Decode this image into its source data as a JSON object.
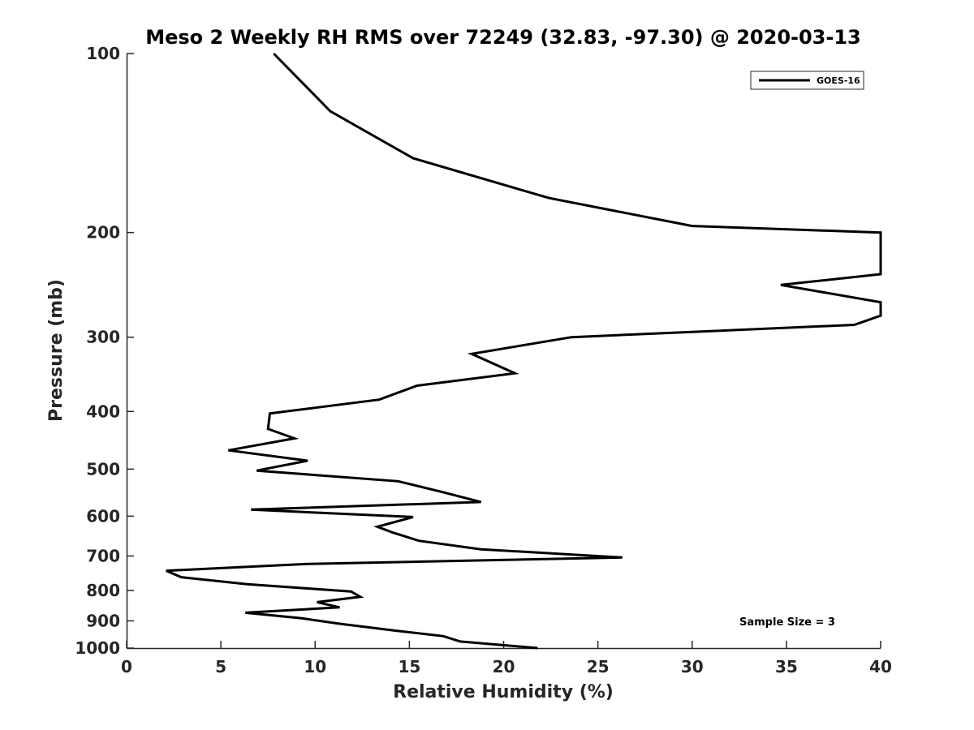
{
  "chart_data": {
    "type": "line",
    "title": "Meso 2 Weekly RH RMS over 72249 (32.83, -97.30) @ 2020-03-13",
    "xlabel": "Relative Humidity (%)",
    "ylabel": "Pressure (mb)",
    "xlim": [
      0,
      40
    ],
    "ylim": [
      100,
      1000
    ],
    "y_scale": "log",
    "y_reversed": true,
    "grid": false,
    "legend_position": "top-right",
    "x_ticks": [
      "0",
      "5",
      "10",
      "15",
      "20",
      "25",
      "30",
      "35",
      "40"
    ],
    "y_ticks": [
      "100",
      "200",
      "300",
      "400",
      "500",
      "600",
      "700",
      "800",
      "900",
      "1000"
    ],
    "annotation": "Sample Size = 3",
    "series": [
      {
        "name": "GOES-16",
        "color": "#000000",
        "points": [
          [
            7.8,
            100
          ],
          [
            10.8,
            125
          ],
          [
            15.2,
            150
          ],
          [
            22.4,
            175
          ],
          [
            30,
            195
          ],
          [
            40,
            200
          ],
          [
            40,
            235
          ],
          [
            34.7,
            245
          ],
          [
            40,
            262
          ],
          [
            40,
            276
          ],
          [
            38.6,
            286
          ],
          [
            23.6,
            300
          ],
          [
            18.3,
            320
          ],
          [
            20.6,
            345
          ],
          [
            15.4,
            362
          ],
          [
            13.4,
            382
          ],
          [
            7.6,
            403
          ],
          [
            7.5,
            428
          ],
          [
            8.9,
            444
          ],
          [
            5.4,
            465
          ],
          [
            9.6,
            484
          ],
          [
            6.9,
            503
          ],
          [
            14.4,
            524
          ],
          [
            16.8,
            547
          ],
          [
            18.8,
            568
          ],
          [
            6.6,
            585
          ],
          [
            15.2,
            602
          ],
          [
            13.3,
            625
          ],
          [
            14.1,
            639
          ],
          [
            15.5,
            660
          ],
          [
            18.8,
            682
          ],
          [
            26.3,
            704
          ],
          [
            9.6,
            722
          ],
          [
            2.1,
            741
          ],
          [
            2.9,
            760
          ],
          [
            6.4,
            781
          ],
          [
            11.9,
            803
          ],
          [
            12.4,
            820
          ],
          [
            10.1,
            837
          ],
          [
            11.3,
            854
          ],
          [
            6.3,
            872
          ],
          [
            9.3,
            891
          ],
          [
            11.3,
            910
          ],
          [
            14.3,
            935
          ],
          [
            16.8,
            955
          ],
          [
            17.7,
            975
          ],
          [
            21.8,
            1000
          ]
        ]
      }
    ]
  }
}
